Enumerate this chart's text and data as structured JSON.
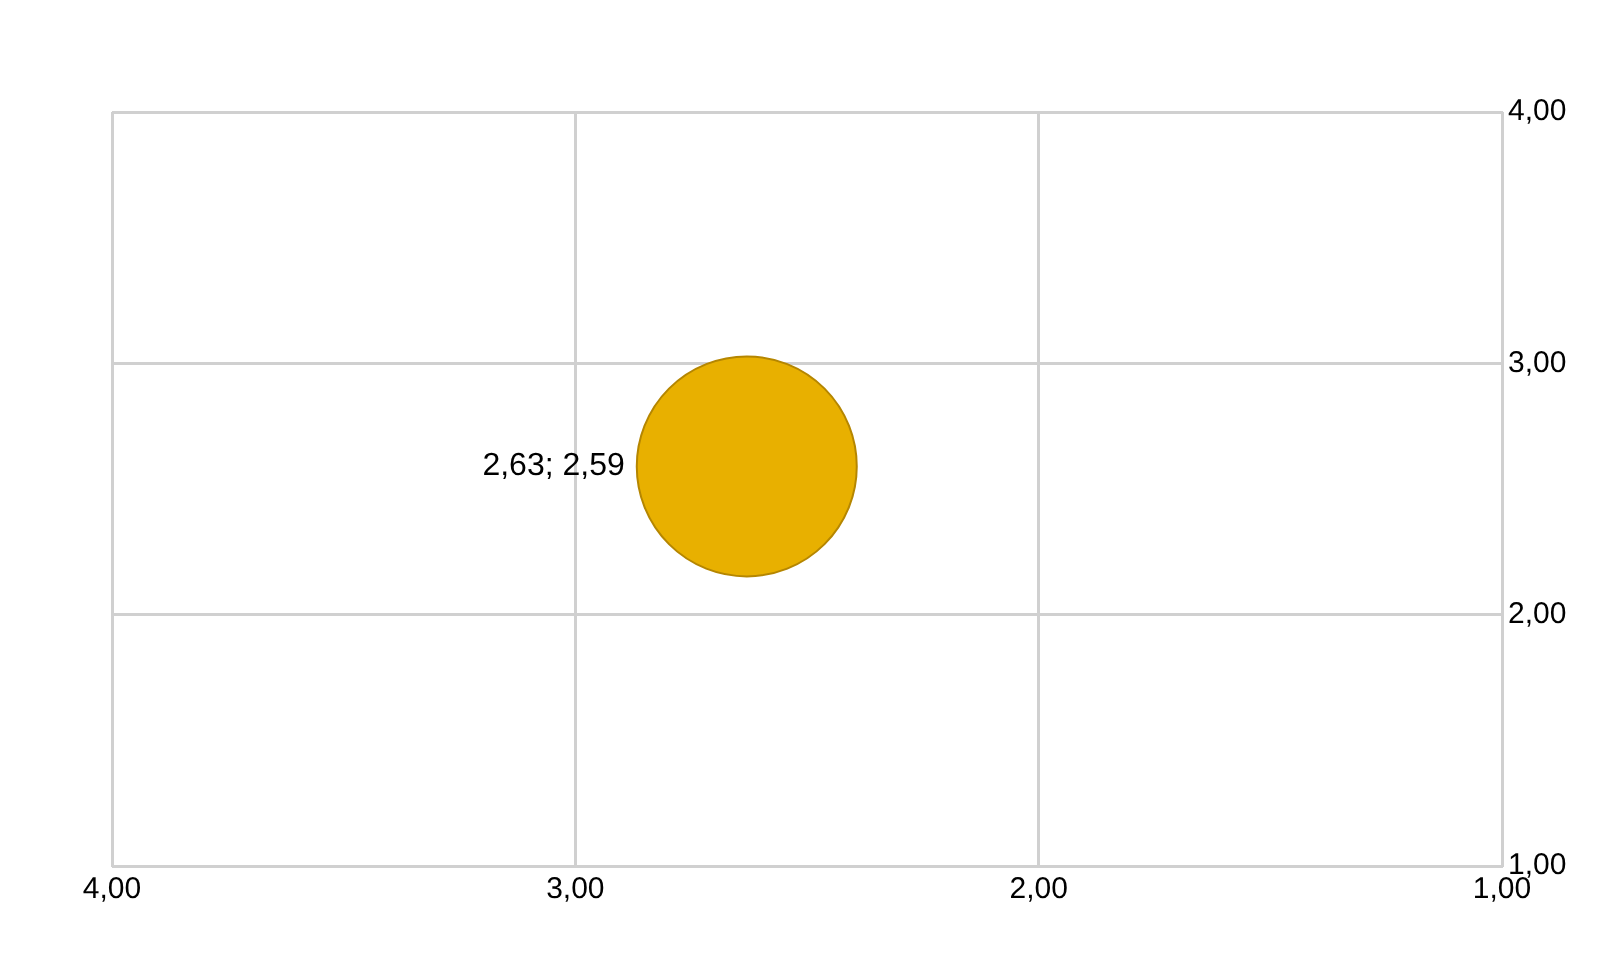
{
  "chart_data": {
    "type": "scatter",
    "x": [
      2.63
    ],
    "values": [
      2.59
    ],
    "color": "#e8b000",
    "marker": "circle",
    "value_labels": [
      "2,63; 2,59"
    ],
    "xlim": [
      4,
      1
    ],
    "xticks": [
      {
        "value": 4,
        "label": "4,00"
      },
      {
        "value": 3,
        "label": "3,00"
      },
      {
        "value": 2,
        "label": "2,00"
      },
      {
        "value": 1,
        "label": "1,00"
      }
    ],
    "ylim": [
      1,
      4
    ],
    "yticks": [
      {
        "value": 1,
        "label": "1,00"
      },
      {
        "value": 2,
        "label": "2,00"
      },
      {
        "value": 3,
        "label": "3,00"
      },
      {
        "value": 4,
        "label": "4,00"
      }
    ],
    "grid": true,
    "legend": false
  }
}
